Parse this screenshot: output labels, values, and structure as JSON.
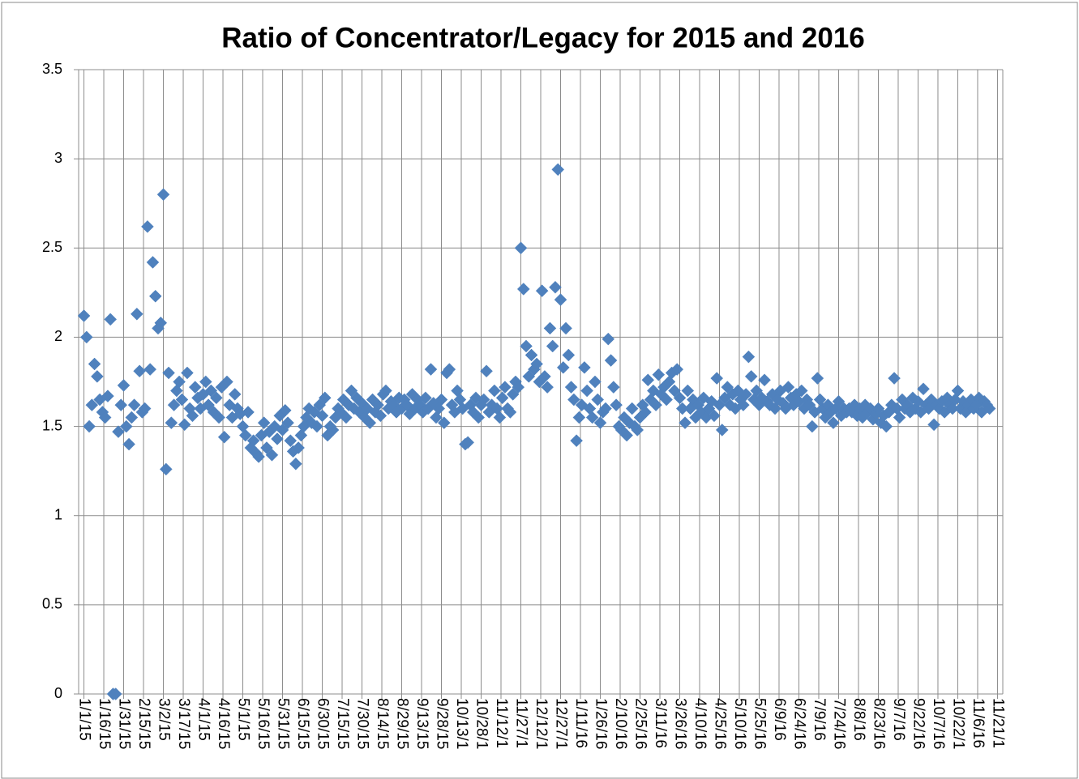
{
  "chart_data": {
    "type": "scatter",
    "title": "Ratio of Concentrator/Legacy for 2015 and 2016",
    "series": [
      {
        "name": null,
        "color": "#4f81bd",
        "marker": "diamond",
        "x": [
          "1/1/15",
          "1/3/15",
          "1/5/15",
          "1/7/15",
          "1/9/15",
          "1/11/15",
          "1/13/15",
          "1/15/15",
          "1/17/15",
          "1/19/15",
          "1/21/15",
          "1/23/15",
          "1/25/15",
          "1/27/15",
          "1/29/15",
          "1/31/15",
          "2/2/15",
          "2/4/15",
          "2/6/15",
          "2/8/15",
          "2/10/15",
          "2/12/15",
          "2/14/15",
          "2/16/15",
          "2/18/15",
          "2/20/15",
          "2/22/15",
          "2/24/15",
          "2/26/15",
          "2/28/15",
          "3/2/15",
          "3/4/15",
          "3/6/15",
          "3/8/15",
          "3/10/15",
          "3/12/15",
          "3/14/15",
          "3/16/15",
          "3/18/15",
          "3/20/15",
          "3/22/15",
          "3/24/15",
          "3/26/15",
          "3/28/15",
          "3/30/15",
          "4/1/15",
          "4/3/15",
          "4/5/15",
          "4/7/15",
          "4/9/15",
          "4/11/15",
          "4/13/15",
          "4/15/15",
          "4/17/15",
          "4/19/15",
          "4/21/15",
          "4/23/15",
          "4/25/15",
          "4/27/15",
          "4/29/15",
          "5/1/15",
          "5/3/15",
          "5/5/15",
          "5/7/15",
          "5/9/15",
          "5/11/15",
          "5/13/15",
          "5/15/15",
          "5/17/15",
          "5/19/15",
          "5/21/15",
          "5/23/15",
          "5/25/15",
          "5/27/15",
          "5/29/15",
          "5/31/15",
          "6/2/15",
          "6/4/15",
          "6/6/15",
          "6/8/15",
          "6/10/15",
          "6/12/15",
          "6/14/15",
          "6/16/15",
          "6/18/15",
          "6/20/15",
          "6/22/15",
          "6/24/15",
          "6/26/15",
          "6/28/15",
          "6/30/15",
          "7/2/15",
          "7/4/15",
          "7/6/15",
          "7/8/15",
          "7/10/15",
          "7/12/15",
          "7/14/15",
          "7/16/15",
          "7/18/15",
          "7/20/15",
          "7/22/15",
          "7/24/15",
          "7/26/15",
          "7/28/15",
          "7/30/15",
          "8/1/15",
          "8/3/15",
          "8/5/15",
          "8/7/15",
          "8/9/15",
          "8/11/15",
          "8/13/15",
          "8/15/15",
          "8/17/15",
          "8/19/15",
          "8/21/15",
          "8/23/15",
          "8/25/15",
          "8/27/15",
          "8/29/15",
          "8/31/15",
          "9/2/15",
          "9/4/15",
          "9/6/15",
          "9/8/15",
          "9/10/15",
          "9/12/15",
          "9/14/15",
          "9/16/15",
          "9/18/15",
          "9/20/15",
          "9/22/15",
          "9/24/15",
          "9/26/15",
          "9/28/15",
          "9/30/15",
          "10/2/15",
          "10/4/15",
          "10/6/15",
          "10/8/15",
          "10/10/15",
          "10/12/15",
          "10/14/15",
          "10/16/15",
          "10/18/15",
          "10/20/15",
          "10/22/15",
          "10/24/15",
          "10/26/15",
          "10/28/15",
          "10/30/15",
          "11/1/15",
          "11/3/15",
          "11/5/15",
          "11/7/15",
          "11/9/15",
          "11/11/15",
          "11/13/15",
          "11/15/15",
          "11/17/15",
          "11/19/15",
          "11/21/15",
          "11/23/15",
          "11/25/15",
          "11/27/15",
          "11/29/15",
          "12/1/15",
          "12/3/15",
          "12/5/15",
          "12/7/15",
          "12/9/15",
          "12/11/15",
          "12/13/15",
          "12/15/15",
          "12/17/15",
          "12/19/15",
          "12/21/15",
          "12/23/15",
          "12/25/15",
          "12/27/15",
          "12/29/15",
          "12/31/15",
          "1/2/16",
          "1/4/16",
          "1/6/16",
          "1/8/16",
          "1/10/16",
          "1/12/16",
          "1/14/16",
          "1/16/16",
          "1/18/16",
          "1/20/16",
          "1/22/16",
          "1/24/16",
          "1/26/16",
          "1/28/16",
          "1/30/16",
          "2/1/16",
          "2/3/16",
          "2/5/16",
          "2/7/16",
          "2/9/16",
          "2/11/16",
          "2/13/16",
          "2/15/16",
          "2/17/16",
          "2/19/16",
          "2/21/16",
          "2/23/16",
          "2/25/16",
          "2/27/16",
          "2/29/16",
          "3/2/16",
          "3/4/16",
          "3/6/16",
          "3/8/16",
          "3/10/16",
          "3/12/16",
          "3/14/16",
          "3/16/16",
          "3/18/16",
          "3/20/16",
          "3/22/16",
          "3/24/16",
          "3/26/16",
          "3/28/16",
          "3/30/16",
          "4/1/16",
          "4/3/16",
          "4/5/16",
          "4/7/16",
          "4/9/16",
          "4/11/16",
          "4/13/16",
          "4/15/16",
          "4/17/16",
          "4/19/16",
          "4/21/16",
          "4/23/16",
          "4/25/16",
          "4/27/16",
          "4/29/16",
          "5/1/16",
          "5/3/16",
          "5/5/16",
          "5/7/16",
          "5/9/16",
          "5/11/16",
          "5/13/16",
          "5/15/16",
          "5/17/16",
          "5/19/16",
          "5/21/16",
          "5/23/16",
          "5/25/16",
          "5/27/16",
          "5/29/16",
          "5/31/16",
          "6/2/16",
          "6/4/16",
          "6/6/16",
          "6/8/16",
          "6/10/16",
          "6/12/16",
          "6/14/16",
          "6/16/16",
          "6/18/16",
          "6/20/16",
          "6/22/16",
          "6/24/16",
          "6/26/16",
          "6/28/16",
          "6/30/16",
          "7/2/16",
          "7/4/16",
          "7/6/16",
          "7/8/16",
          "7/10/16",
          "7/12/16",
          "7/14/16",
          "7/16/16",
          "7/18/16",
          "7/20/16",
          "7/22/16",
          "7/24/16",
          "7/26/16",
          "7/28/16",
          "7/30/16",
          "8/1/16",
          "8/3/16",
          "8/5/16",
          "8/7/16",
          "8/9/16",
          "8/11/16",
          "8/13/16",
          "8/15/16",
          "8/17/16",
          "8/19/16",
          "8/21/16",
          "8/23/16",
          "8/25/16",
          "8/27/16",
          "8/29/16",
          "8/31/16",
          "9/2/16",
          "9/4/16",
          "9/6/16",
          "9/8/16",
          "9/10/16",
          "9/12/16",
          "9/14/16",
          "9/16/16",
          "9/18/16",
          "9/20/16",
          "9/22/16",
          "9/24/16",
          "9/26/16",
          "9/28/16",
          "9/30/16",
          "10/2/16",
          "10/4/16",
          "10/6/16",
          "10/8/16",
          "10/10/16",
          "10/12/16",
          "10/14/16",
          "10/16/16",
          "10/18/16",
          "10/20/16",
          "10/22/16",
          "10/24/16",
          "10/26/16",
          "10/28/16",
          "10/30/16",
          "11/1/16",
          "11/3/16",
          "11/5/16",
          "11/7/16",
          "11/9/16",
          "11/11/16",
          "11/13/16",
          "11/15/16"
        ],
        "values": [
          2.12,
          2.0,
          1.5,
          1.62,
          1.85,
          1.78,
          1.65,
          1.58,
          1.55,
          1.67,
          2.1,
          0,
          0,
          1.47,
          1.62,
          1.73,
          1.5,
          1.4,
          1.55,
          1.62,
          2.13,
          1.81,
          1.58,
          1.6,
          2.62,
          1.82,
          2.42,
          2.23,
          2.05,
          2.08,
          2.8,
          1.26,
          1.8,
          1.52,
          1.62,
          1.7,
          1.75,
          1.65,
          1.51,
          1.8,
          1.6,
          1.56,
          1.72,
          1.66,
          1.6,
          1.68,
          1.75,
          1.62,
          1.7,
          1.58,
          1.66,
          1.55,
          1.72,
          1.44,
          1.75,
          1.62,
          1.55,
          1.68,
          1.6,
          1.57,
          1.5,
          1.45,
          1.58,
          1.38,
          1.42,
          1.35,
          1.33,
          1.45,
          1.52,
          1.38,
          1.47,
          1.34,
          1.5,
          1.43,
          1.56,
          1.48,
          1.59,
          1.52,
          1.42,
          1.36,
          1.29,
          1.38,
          1.45,
          1.5,
          1.55,
          1.6,
          1.52,
          1.58,
          1.5,
          1.62,
          1.56,
          1.66,
          1.45,
          1.5,
          1.48,
          1.55,
          1.6,
          1.58,
          1.65,
          1.55,
          1.62,
          1.7,
          1.6,
          1.66,
          1.58,
          1.63,
          1.55,
          1.6,
          1.52,
          1.65,
          1.58,
          1.62,
          1.56,
          1.68,
          1.7,
          1.6,
          1.64,
          1.62,
          1.58,
          1.66,
          1.6,
          1.65,
          1.62,
          1.57,
          1.68,
          1.6,
          1.65,
          1.62,
          1.58,
          1.66,
          1.6,
          1.82,
          1.63,
          1.55,
          1.6,
          1.65,
          1.52,
          1.8,
          1.82,
          1.62,
          1.58,
          1.7,
          1.65,
          1.6,
          1.4,
          1.41,
          1.62,
          1.58,
          1.66,
          1.55,
          1.62,
          1.65,
          1.81,
          1.58,
          1.62,
          1.7,
          1.6,
          1.55,
          1.66,
          1.72,
          1.6,
          1.58,
          1.68,
          1.75,
          1.72,
          2.5,
          2.27,
          1.95,
          1.78,
          1.9,
          1.82,
          1.85,
          1.75,
          2.26,
          1.78,
          1.72,
          2.05,
          1.95,
          2.28,
          2.94,
          2.21,
          1.83,
          2.05,
          1.9,
          1.72,
          1.65,
          1.42,
          1.55,
          1.62,
          1.83,
          1.7,
          1.6,
          1.55,
          1.75,
          1.65,
          1.52,
          1.58,
          1.6,
          1.99,
          1.87,
          1.72,
          1.62,
          1.5,
          1.48,
          1.55,
          1.45,
          1.52,
          1.6,
          1.5,
          1.48,
          1.55,
          1.62,
          1.58,
          1.76,
          1.65,
          1.7,
          1.62,
          1.79,
          1.68,
          1.72,
          1.65,
          1.75,
          1.8,
          1.7,
          1.82,
          1.66,
          1.6,
          1.52,
          1.7,
          1.6,
          1.65,
          1.55,
          1.62,
          1.58,
          1.66,
          1.55,
          1.6,
          1.64,
          1.56,
          1.77,
          1.62,
          1.48,
          1.66,
          1.72,
          1.62,
          1.68,
          1.6,
          1.7,
          1.65,
          1.62,
          1.68,
          1.89,
          1.78,
          1.65,
          1.7,
          1.62,
          1.66,
          1.76,
          1.64,
          1.62,
          1.68,
          1.6,
          1.65,
          1.7,
          1.63,
          1.6,
          1.72,
          1.66,
          1.62,
          1.68,
          1.64,
          1.7,
          1.6,
          1.65,
          1.62,
          1.5,
          1.58,
          1.77,
          1.65,
          1.6,
          1.55,
          1.62,
          1.58,
          1.52,
          1.6,
          1.64,
          1.56,
          1.6,
          1.58,
          1.6,
          1.58,
          1.62,
          1.56,
          1.6,
          1.55,
          1.62,
          1.58,
          1.6,
          1.54,
          1.57,
          1.6,
          1.52,
          1.56,
          1.5,
          1.58,
          1.62,
          1.77,
          1.6,
          1.55,
          1.65,
          1.6,
          1.62,
          1.58,
          1.66,
          1.6,
          1.64,
          1.58,
          1.71,
          1.62,
          1.6,
          1.65,
          1.51,
          1.62,
          1.6,
          1.64,
          1.58,
          1.66,
          1.62,
          1.6,
          1.65,
          1.7,
          1.6,
          1.64,
          1.58,
          1.62,
          1.65,
          1.6,
          1.62,
          1.66,
          1.58,
          1.64,
          1.62,
          1.6
        ]
      }
    ],
    "xlim": [
      "12/28/14",
      "11/25/16"
    ],
    "xticks": [
      "1/1/15",
      "1/16/15",
      "1/31/15",
      "2/15/15",
      "3/2/15",
      "3/17/15",
      "4/1/15",
      "4/16/15",
      "5/1/15",
      "5/16/15",
      "5/31/15",
      "6/15/15",
      "6/30/15",
      "7/15/15",
      "7/30/15",
      "8/14/15",
      "8/29/15",
      "9/13/15",
      "9/28/15",
      {
        "value": "10/13/15",
        "label": "10/13/1"
      },
      {
        "value": "10/28/15",
        "label": "10/28/1"
      },
      {
        "value": "11/12/15",
        "label": "11/12/1"
      },
      {
        "value": "11/27/15",
        "label": "11/27/1"
      },
      {
        "value": "12/12/15",
        "label": "12/12/1"
      },
      {
        "value": "12/27/15",
        "label": "12/27/1"
      },
      "1/11/16",
      "1/26/16",
      "2/10/16",
      "2/25/16",
      "3/11/16",
      "3/26/16",
      "4/10/16",
      "4/25/16",
      "5/10/16",
      "5/25/16",
      "6/9/16",
      "6/24/16",
      "7/9/16",
      "7/24/16",
      "8/8/16",
      "8/23/16",
      "9/7/16",
      "9/22/16",
      "10/7/16",
      {
        "value": "10/22/16",
        "label": "10/22/1"
      },
      "11/6/16",
      {
        "value": "11/21/16",
        "label": "11/21/1"
      }
    ],
    "ylim": [
      0,
      3.5
    ],
    "yticks": [
      0,
      0.5,
      1,
      1.5,
      2,
      2.5,
      3,
      3.5
    ],
    "grid": true
  }
}
